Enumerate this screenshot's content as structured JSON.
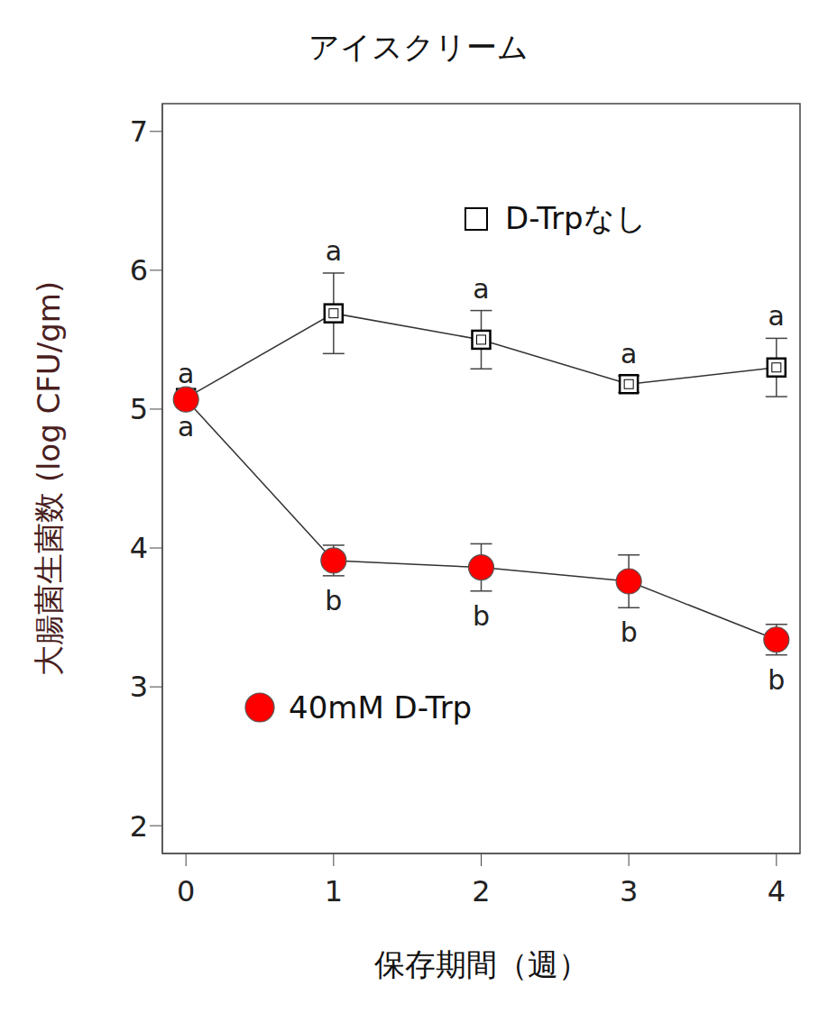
{
  "chart_data": {
    "type": "line",
    "title": "アイスクリーム",
    "x_label": "保存期間（週）",
    "y_label": "大腸菌生菌数 (log CFU/gm)",
    "x": [
      0,
      1,
      2,
      3,
      4
    ],
    "xlim": [
      -0.16,
      4.16
    ],
    "xticks": [
      0,
      1,
      2,
      3,
      4
    ],
    "ylim": [
      1.8,
      7.2
    ],
    "yticks": [
      2,
      3,
      4,
      5,
      6,
      7
    ],
    "grid": false,
    "series": [
      {
        "name": "D-Trpなし",
        "color": "#000000",
        "marker": "square",
        "line_style": "solid",
        "values": [
          5.08,
          5.69,
          5.5,
          5.18,
          5.3
        ],
        "errors": [
          0.02,
          0.29,
          0.21,
          0.06,
          0.21
        ],
        "letters": [
          "a",
          "a",
          "a",
          "a",
          "a"
        ]
      },
      {
        "name": "40mM D-Trp",
        "color": "#ff0000",
        "marker": "circle",
        "line_style": "solid",
        "values": [
          5.07,
          3.91,
          3.86,
          3.76,
          3.34
        ],
        "errors": [
          0.02,
          0.11,
          0.17,
          0.19,
          0.11
        ],
        "letters": [
          "a",
          "b",
          "b",
          "b",
          "b"
        ]
      }
    ]
  }
}
